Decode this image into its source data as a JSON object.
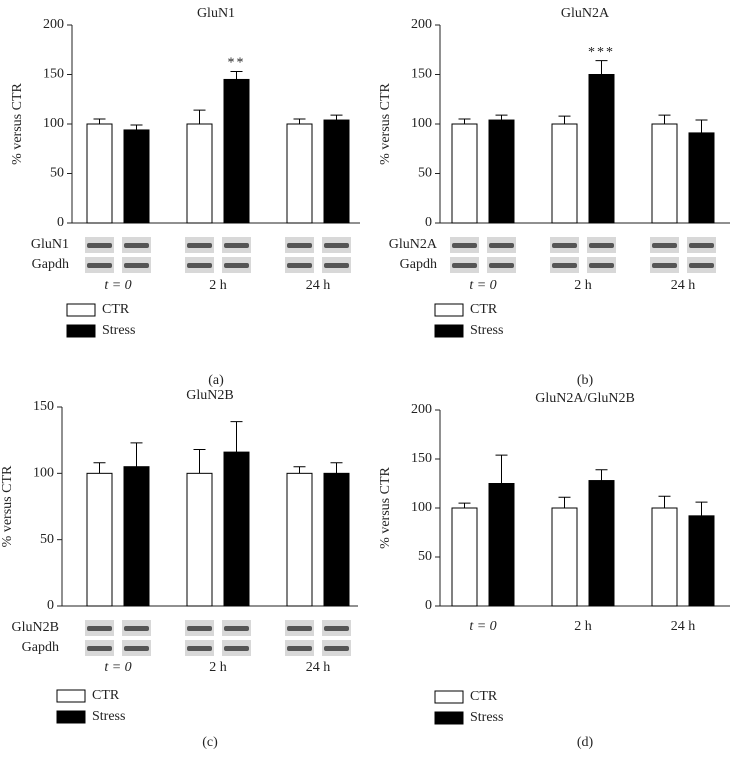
{
  "chart_data": [
    {
      "type": "bar",
      "title": "GluN1",
      "y_label": "% versus CTR",
      "categories": [
        "t = 0",
        "2 h",
        "24 h"
      ],
      "series": [
        {
          "name": "CTR",
          "color": "#ffffff",
          "values": [
            100,
            100,
            100
          ],
          "errors": [
            5,
            14,
            5
          ]
        },
        {
          "name": "Stress",
          "color": "#000000",
          "values": [
            94,
            145,
            104
          ],
          "errors": [
            5,
            8,
            5
          ]
        }
      ],
      "ylim": [
        0,
        200
      ],
      "yticks": [
        0,
        50,
        100,
        150,
        200
      ],
      "annotations": [
        {
          "text": "**",
          "x": "2 h",
          "series": "Stress"
        }
      ],
      "blot_labels": [
        "GluN1",
        "Gapdh"
      ],
      "panel_label": "(a)"
    },
    {
      "type": "bar",
      "title": "GluN2A",
      "y_label": "% versus CTR",
      "categories": [
        "t = 0",
        "2 h",
        "24 h"
      ],
      "series": [
        {
          "name": "CTR",
          "color": "#ffffff",
          "values": [
            100,
            100,
            100
          ],
          "errors": [
            5,
            8,
            9
          ]
        },
        {
          "name": "Stress",
          "color": "#000000",
          "values": [
            104,
            150,
            91
          ],
          "errors": [
            5,
            14,
            13
          ]
        }
      ],
      "ylim": [
        0,
        200
      ],
      "yticks": [
        0,
        50,
        100,
        150,
        200
      ],
      "annotations": [
        {
          "text": "***",
          "x": "2 h",
          "series": "Stress"
        }
      ],
      "blot_labels": [
        "GluN2A",
        "Gapdh"
      ],
      "panel_label": "(b)"
    },
    {
      "type": "bar",
      "title": "GluN2B",
      "y_label": "% versus CTR",
      "categories": [
        "t = 0",
        "2 h",
        "24 h"
      ],
      "series": [
        {
          "name": "CTR",
          "color": "#ffffff",
          "values": [
            100,
            100,
            100
          ],
          "errors": [
            8,
            18,
            5
          ]
        },
        {
          "name": "Stress",
          "color": "#000000",
          "values": [
            105,
            116,
            100
          ],
          "errors": [
            18,
            23,
            8
          ]
        }
      ],
      "ylim": [
        0,
        150
      ],
      "yticks": [
        0,
        50,
        100,
        150
      ],
      "blot_labels": [
        "GluN2B",
        "Gapdh"
      ],
      "panel_label": "(c)"
    },
    {
      "type": "bar",
      "title": "GluN2A/GluN2B",
      "y_label": "% versus CTR",
      "categories": [
        "t = 0",
        "2 h",
        "24 h"
      ],
      "series": [
        {
          "name": "CTR",
          "color": "#ffffff",
          "values": [
            100,
            100,
            100
          ],
          "errors": [
            5,
            11,
            12
          ]
        },
        {
          "name": "Stress",
          "color": "#000000",
          "values": [
            125,
            128,
            92
          ],
          "errors": [
            29,
            11,
            14
          ]
        }
      ],
      "ylim": [
        0,
        200
      ],
      "yticks": [
        0,
        50,
        100,
        150,
        200
      ],
      "panel_label": "(d)"
    }
  ]
}
